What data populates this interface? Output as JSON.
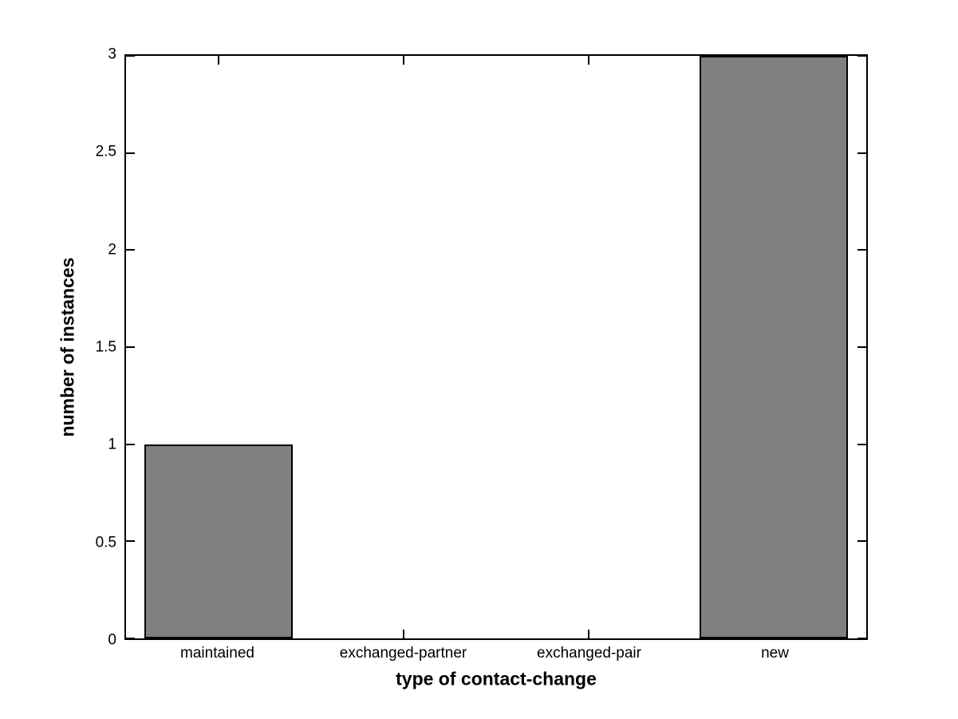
{
  "figure": {
    "background_color": "#ffffff",
    "axis_color": "#000000"
  },
  "chart_data": {
    "type": "bar",
    "title": "",
    "xlabel": "type of contact-change",
    "ylabel": "number of instances",
    "categories": [
      "maintained",
      "exchanged-partner",
      "exchanged-pair",
      "new"
    ],
    "values": [
      1,
      0,
      0,
      3
    ],
    "ylim": [
      0,
      3
    ],
    "yticks": [
      0,
      0.5,
      1,
      1.5,
      2,
      2.5,
      3
    ],
    "ytick_labels": [
      "0",
      "0.5",
      "1",
      "1.5",
      "2",
      "2.5",
      "3"
    ],
    "bar_width_fraction": 0.8,
    "bar_color": "#808080",
    "bar_edge_color": "#000000",
    "grid": false,
    "legend_position": "none",
    "box": true,
    "tick_direction": "in"
  }
}
